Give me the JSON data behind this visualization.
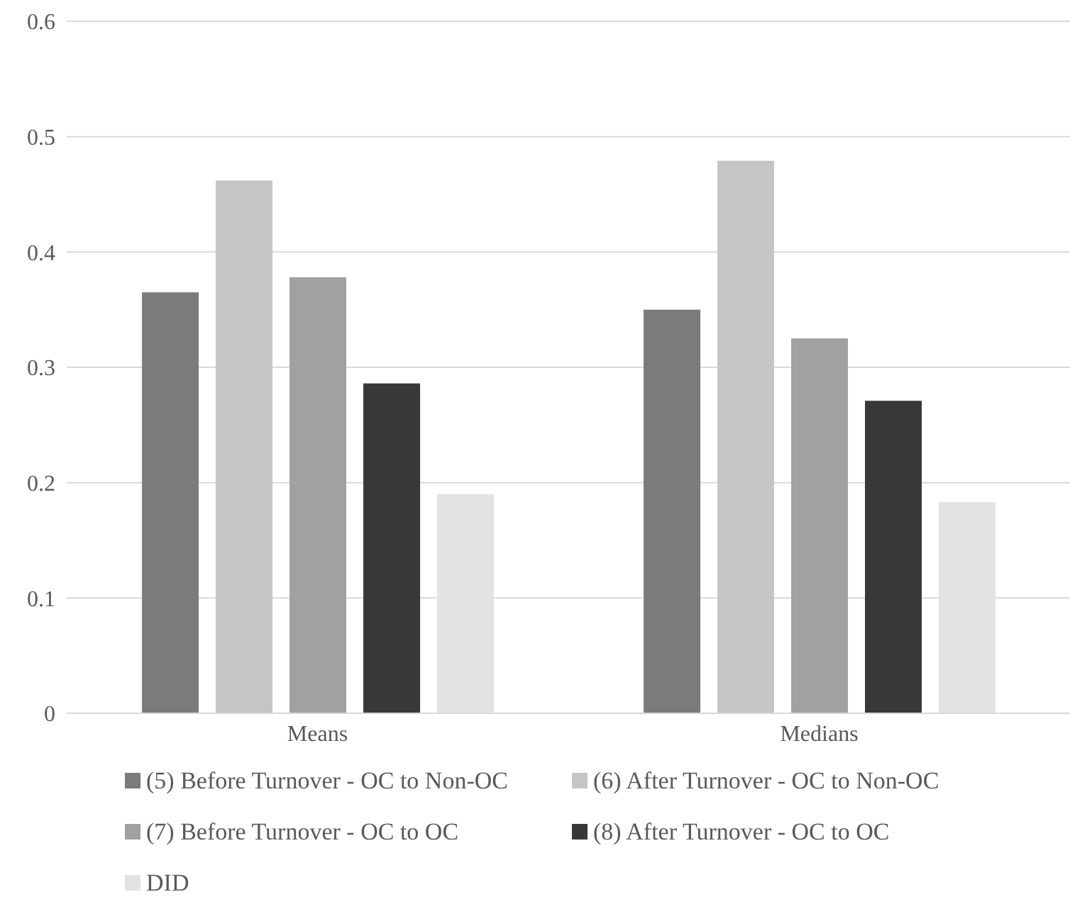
{
  "chart_data": {
    "type": "bar",
    "categories": [
      "Means",
      "Medians"
    ],
    "series": [
      {
        "name": "(5) Before Turnover - OC to Non-OC",
        "color": "#7b7b7b",
        "values": [
          0.365,
          0.35
        ]
      },
      {
        "name": "(6) After Turnover - OC to Non-OC",
        "color": "#c4c5c4",
        "values": [
          0.462,
          0.479
        ]
      },
      {
        "name": "(7) Before Turnover - OC to OC",
        "color": "#a1a1a1",
        "values": [
          0.378,
          0.325
        ]
      },
      {
        "name": "(8) After Turnover - OC to OC",
        "color": "#383836",
        "values": [
          0.286,
          0.271
        ]
      },
      {
        "name": "DID",
        "color": "#e2e3e2",
        "values": [
          0.19,
          0.183
        ]
      }
    ],
    "ylim": [
      0,
      0.6
    ],
    "yticks": [
      0,
      0.1,
      0.2,
      0.3,
      0.4,
      0.5,
      0.6
    ],
    "grid": "y",
    "legend": "bottom"
  }
}
